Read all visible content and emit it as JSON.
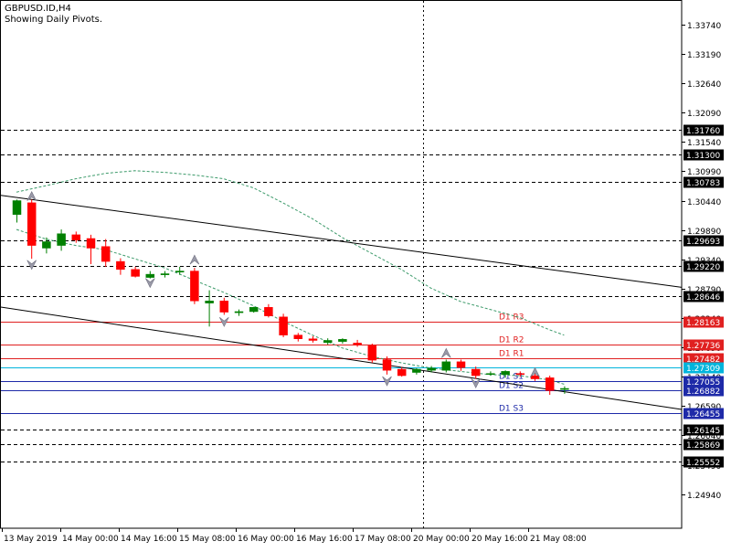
{
  "header": {
    "symbol": "GBPUSD.ID,H4",
    "subtitle": "Showing Daily Pivots."
  },
  "colors": {
    "bull": "#008000",
    "bear": "#ff0000",
    "pivot_red": "#e02020",
    "pivot_blue": "#1e2aa8",
    "pivot_cyan": "#00b4dc",
    "envelope": "#3c9a6a",
    "trendline": "#000000",
    "fractal": "#9a9aa8",
    "axis": "#000000"
  },
  "chart_data": {
    "type": "candlestick",
    "title": "",
    "ylim": [
      1.243,
      1.342
    ],
    "y_ticks": [
      "1.33740",
      "1.33190",
      "1.32640",
      "1.32090",
      "1.31540",
      "1.30990",
      "1.30440",
      "1.29890",
      "1.29340",
      "1.28790",
      "1.28240",
      "1.27690",
      "1.27140",
      "1.26590",
      "1.26040",
      "1.25490",
      "1.24940"
    ],
    "x_labels": [
      "13 May 2019",
      "14 May 00:00",
      "14 May 16:00",
      "15 May 08:00",
      "16 May 00:00",
      "16 May 16:00",
      "17 May 08:00",
      "20 May 00:00",
      "20 May 16:00",
      "21 May 08:00"
    ],
    "candles": [
      {
        "o": 1.3018,
        "h": 1.3046,
        "l": 1.3003,
        "c": 1.3044
      },
      {
        "o": 1.304,
        "h": 1.3046,
        "l": 1.2935,
        "c": 1.296
      },
      {
        "o": 1.2955,
        "h": 1.2975,
        "l": 1.2945,
        "c": 1.2967
      },
      {
        "o": 1.296,
        "h": 1.299,
        "l": 1.295,
        "c": 1.2982
      },
      {
        "o": 1.298,
        "h": 1.2986,
        "l": 1.2965,
        "c": 1.297
      },
      {
        "o": 1.2973,
        "h": 1.298,
        "l": 1.2925,
        "c": 1.2955
      },
      {
        "o": 1.2958,
        "h": 1.2972,
        "l": 1.292,
        "c": 1.293
      },
      {
        "o": 1.293,
        "h": 1.2936,
        "l": 1.2905,
        "c": 1.2915
      },
      {
        "o": 1.2915,
        "h": 1.292,
        "l": 1.29,
        "c": 1.2902
      },
      {
        "o": 1.29,
        "h": 1.2912,
        "l": 1.2898,
        "c": 1.2906
      },
      {
        "o": 1.2905,
        "h": 1.2912,
        "l": 1.29,
        "c": 1.2907
      },
      {
        "o": 1.291,
        "h": 1.292,
        "l": 1.2905,
        "c": 1.2912
      },
      {
        "o": 1.2912,
        "h": 1.2918,
        "l": 1.285,
        "c": 1.2856
      },
      {
        "o": 1.2852,
        "h": 1.2876,
        "l": 1.2808,
        "c": 1.2856
      },
      {
        "o": 1.2856,
        "h": 1.2862,
        "l": 1.283,
        "c": 1.2835
      },
      {
        "o": 1.2834,
        "h": 1.284,
        "l": 1.2828,
        "c": 1.2836
      },
      {
        "o": 1.2836,
        "h": 1.2845,
        "l": 1.2834,
        "c": 1.2844
      },
      {
        "o": 1.2844,
        "h": 1.285,
        "l": 1.2825,
        "c": 1.2828
      },
      {
        "o": 1.2826,
        "h": 1.2832,
        "l": 1.2788,
        "c": 1.2792
      },
      {
        "o": 1.2792,
        "h": 1.2796,
        "l": 1.278,
        "c": 1.2785
      },
      {
        "o": 1.2785,
        "h": 1.279,
        "l": 1.2778,
        "c": 1.2782
      },
      {
        "o": 1.2778,
        "h": 1.2786,
        "l": 1.2774,
        "c": 1.2782
      },
      {
        "o": 1.278,
        "h": 1.2786,
        "l": 1.2776,
        "c": 1.2784
      },
      {
        "o": 1.2777,
        "h": 1.2783,
        "l": 1.277,
        "c": 1.2774
      },
      {
        "o": 1.2772,
        "h": 1.2776,
        "l": 1.274,
        "c": 1.2745
      },
      {
        "o": 1.2746,
        "h": 1.2752,
        "l": 1.2718,
        "c": 1.2726
      },
      {
        "o": 1.2728,
        "h": 1.2732,
        "l": 1.2714,
        "c": 1.2716
      },
      {
        "o": 1.2722,
        "h": 1.273,
        "l": 1.2718,
        "c": 1.2728
      },
      {
        "o": 1.2726,
        "h": 1.2734,
        "l": 1.2722,
        "c": 1.273
      },
      {
        "o": 1.2726,
        "h": 1.2746,
        "l": 1.2722,
        "c": 1.2742
      },
      {
        "o": 1.2742,
        "h": 1.2746,
        "l": 1.2725,
        "c": 1.2731
      },
      {
        "o": 1.2728,
        "h": 1.2733,
        "l": 1.271,
        "c": 1.2716
      },
      {
        "o": 1.272,
        "h": 1.2724,
        "l": 1.2716,
        "c": 1.272
      },
      {
        "o": 1.2718,
        "h": 1.2726,
        "l": 1.2712,
        "c": 1.2724
      },
      {
        "o": 1.272,
        "h": 1.2724,
        "l": 1.2714,
        "c": 1.2718
      },
      {
        "o": 1.2716,
        "h": 1.272,
        "l": 1.2706,
        "c": 1.271
      },
      {
        "o": 1.2712,
        "h": 1.2716,
        "l": 1.268,
        "c": 1.2688
      },
      {
        "o": 1.269,
        "h": 1.2696,
        "l": 1.2682,
        "c": 1.2692
      }
    ],
    "price_lines": [
      {
        "label": "1.31760",
        "value": 1.3176,
        "style": "dash",
        "color": "#000000"
      },
      {
        "label": "1.31300",
        "value": 1.313,
        "style": "dash",
        "color": "#000000"
      },
      {
        "label": "1.30783",
        "value": 1.30783,
        "style": "dash",
        "color": "#000000"
      },
      {
        "label": "1.29693",
        "value": 1.29693,
        "style": "dash",
        "color": "#000000"
      },
      {
        "label": "1.29220",
        "value": 1.2922,
        "style": "dash",
        "color": "#000000"
      },
      {
        "label": "1.28646",
        "value": 1.28646,
        "style": "dash",
        "color": "#000000"
      },
      {
        "label": "1.28163",
        "value": 1.28163,
        "style": "solid",
        "color": "#e02020",
        "name": "D1 R3"
      },
      {
        "label": "1.27736",
        "value": 1.27736,
        "style": "solid",
        "color": "#e02020",
        "name": "D1 R2"
      },
      {
        "label": "1.27482",
        "value": 1.27482,
        "style": "solid",
        "color": "#e02020",
        "name": "D1 R1"
      },
      {
        "label": "1.27309",
        "value": 1.27309,
        "style": "solid",
        "color": "#00b4dc"
      },
      {
        "label": "1.27055",
        "value": 1.27055,
        "style": "solid",
        "color": "#1e2aa8",
        "name": "D1 S1"
      },
      {
        "label": "1.26882",
        "value": 1.26882,
        "style": "solid",
        "color": "#1e2aa8",
        "name": "D1 S2"
      },
      {
        "label": "1.26455",
        "value": 1.26455,
        "style": "solid",
        "color": "#1e2aa8",
        "name": "D1 S3"
      },
      {
        "label": "1.26145",
        "value": 1.26145,
        "style": "dash",
        "color": "#000000"
      },
      {
        "label": "1.25869",
        "value": 1.25869,
        "style": "dash",
        "color": "#000000"
      },
      {
        "label": "1.25552",
        "value": 1.25552,
        "style": "dash",
        "color": "#000000"
      }
    ],
    "trendlines": [
      {
        "from": [
          0,
          1.305
        ],
        "to": [
          48,
          1.287
        ]
      },
      {
        "from": [
          0,
          1.284
        ],
        "to": [
          48,
          1.264
        ]
      }
    ],
    "envelope_upper": [
      [
        0,
        1.306
      ],
      [
        2,
        1.3072
      ],
      [
        4,
        1.3085
      ],
      [
        6,
        1.3095
      ],
      [
        8,
        1.31
      ],
      [
        10,
        1.3097
      ],
      [
        12,
        1.3092
      ],
      [
        14,
        1.3085
      ],
      [
        16,
        1.3068
      ],
      [
        18,
        1.304
      ],
      [
        20,
        1.301
      ],
      [
        22,
        1.2975
      ],
      [
        24,
        1.2945
      ],
      [
        26,
        1.2915
      ],
      [
        28,
        1.288
      ],
      [
        30,
        1.2855
      ],
      [
        32,
        1.284
      ],
      [
        34,
        1.2825
      ],
      [
        36,
        1.2802
      ],
      [
        37,
        1.2792
      ]
    ],
    "envelope_lower": [
      [
        0,
        1.299
      ],
      [
        2,
        1.2972
      ],
      [
        4,
        1.296
      ],
      [
        6,
        1.2952
      ],
      [
        8,
        1.2935
      ],
      [
        10,
        1.2918
      ],
      [
        12,
        1.2895
      ],
      [
        14,
        1.2872
      ],
      [
        16,
        1.2847
      ],
      [
        18,
        1.2818
      ],
      [
        20,
        1.2792
      ],
      [
        22,
        1.2768
      ],
      [
        24,
        1.2752
      ],
      [
        26,
        1.274
      ],
      [
        28,
        1.273
      ],
      [
        30,
        1.2724
      ],
      [
        32,
        1.2718
      ],
      [
        34,
        1.2716
      ],
      [
        36,
        1.2708
      ],
      [
        37,
        1.27
      ]
    ],
    "fractals": [
      {
        "i": 1,
        "dir": "up",
        "value": 1.3054
      },
      {
        "i": 1,
        "dir": "down",
        "value": 1.2922
      },
      {
        "i": 9,
        "dir": "down",
        "value": 1.2888
      },
      {
        "i": 12,
        "dir": "up",
        "value": 1.2935
      },
      {
        "i": 14,
        "dir": "down",
        "value": 1.2815
      },
      {
        "i": 25,
        "dir": "down",
        "value": 1.2704
      },
      {
        "i": 29,
        "dir": "up",
        "value": 1.276
      },
      {
        "i": 31,
        "dir": "down",
        "value": 1.27
      },
      {
        "i": 35,
        "dir": "up",
        "value": 1.2724
      }
    ],
    "vertical_marker_index": 27.5
  }
}
